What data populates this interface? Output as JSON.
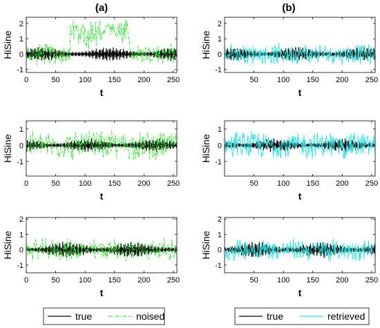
{
  "figure": {
    "column_titles": [
      "(a)",
      "(b)"
    ],
    "legends": [
      {
        "entries": [
          {
            "label": "true",
            "color": "#000000",
            "dash": "solid"
          },
          {
            "label": "noised",
            "color": "#33dd33",
            "dash": "dashdot"
          }
        ]
      },
      {
        "entries": [
          {
            "label": "true",
            "color": "#000000",
            "dash": "solid"
          },
          {
            "label": "retrieved",
            "color": "#33dddd",
            "dash": "solid"
          }
        ]
      }
    ]
  },
  "chart_data": [
    {
      "panel": "row1-a",
      "type": "line",
      "xlabel": "t",
      "ylabel": "HiSine",
      "xlim": [
        0,
        256
      ],
      "ylim": [
        -1.2,
        2.4
      ],
      "xticks": [
        0,
        50,
        100,
        150,
        200,
        250
      ],
      "yticks": [
        -1,
        0,
        1,
        2
      ],
      "series": [
        {
          "name": "true",
          "color": "#000000",
          "amplitude": 0.45,
          "style": "solid"
        },
        {
          "name": "noised",
          "color": "#33dd33",
          "amplitude": 0.8,
          "style": "dashdot",
          "offset_region": [
            75,
            175
          ],
          "offset": 1.4
        }
      ]
    },
    {
      "panel": "row1-b",
      "type": "line",
      "xlabel": "t",
      "ylabel": "HiSine",
      "xlim": [
        0,
        256
      ],
      "ylim": [
        -1.2,
        2.4
      ],
      "xticks": [
        50,
        100,
        150,
        200,
        250
      ],
      "yticks": [
        -1,
        0,
        1,
        2
      ],
      "series": [
        {
          "name": "true",
          "color": "#000000",
          "amplitude": 0.45,
          "style": "solid"
        },
        {
          "name": "retrieved",
          "color": "#33dddd",
          "amplitude": 0.75,
          "style": "solid"
        }
      ]
    },
    {
      "panel": "row2-a",
      "type": "line",
      "xlabel": "t",
      "ylabel": "HiSine",
      "xlim": [
        0,
        256
      ],
      "ylim": [
        -1.9,
        1.5
      ],
      "xticks": [
        0,
        50,
        100,
        150,
        200,
        250
      ],
      "yticks": [
        -1,
        0,
        1
      ],
      "series": [
        {
          "name": "true",
          "color": "#000000",
          "amplitude": 0.4,
          "style": "solid"
        },
        {
          "name": "noised",
          "color": "#33dd33",
          "amplitude": 1.0,
          "style": "dashdot"
        }
      ]
    },
    {
      "panel": "row2-b",
      "type": "line",
      "xlabel": "t",
      "ylabel": "HiSine",
      "xlim": [
        0,
        256
      ],
      "ylim": [
        -1.9,
        1.5
      ],
      "xticks": [
        50,
        100,
        150,
        200,
        250
      ],
      "yticks": [
        -1,
        0,
        1
      ],
      "series": [
        {
          "name": "true",
          "color": "#000000",
          "amplitude": 0.4,
          "style": "solid"
        },
        {
          "name": "retrieved",
          "color": "#33dddd",
          "amplitude": 0.95,
          "style": "solid"
        }
      ]
    },
    {
      "panel": "row3-a",
      "type": "line",
      "xlabel": "t",
      "ylabel": "HiSine",
      "xlim": [
        0,
        256
      ],
      "ylim": [
        -1.5,
        2.1
      ],
      "xticks": [
        0,
        50,
        100,
        150,
        200,
        250
      ],
      "yticks": [
        -1,
        0,
        1,
        2
      ],
      "series": [
        {
          "name": "true",
          "color": "#000000",
          "amplitude": 0.5,
          "style": "solid"
        },
        {
          "name": "noised",
          "color": "#33dd33",
          "amplitude": 0.8,
          "style": "dashdot"
        }
      ]
    },
    {
      "panel": "row3-b",
      "type": "line",
      "xlabel": "t",
      "ylabel": "HiSine",
      "xlim": [
        0,
        256
      ],
      "ylim": [
        -1.5,
        2.1
      ],
      "xticks": [
        50,
        100,
        150,
        200,
        250
      ],
      "yticks": [
        -1,
        0,
        1,
        2
      ],
      "series": [
        {
          "name": "true",
          "color": "#000000",
          "amplitude": 0.5,
          "style": "solid"
        },
        {
          "name": "retrieved",
          "color": "#33dddd",
          "amplitude": 0.8,
          "style": "solid"
        }
      ]
    }
  ]
}
